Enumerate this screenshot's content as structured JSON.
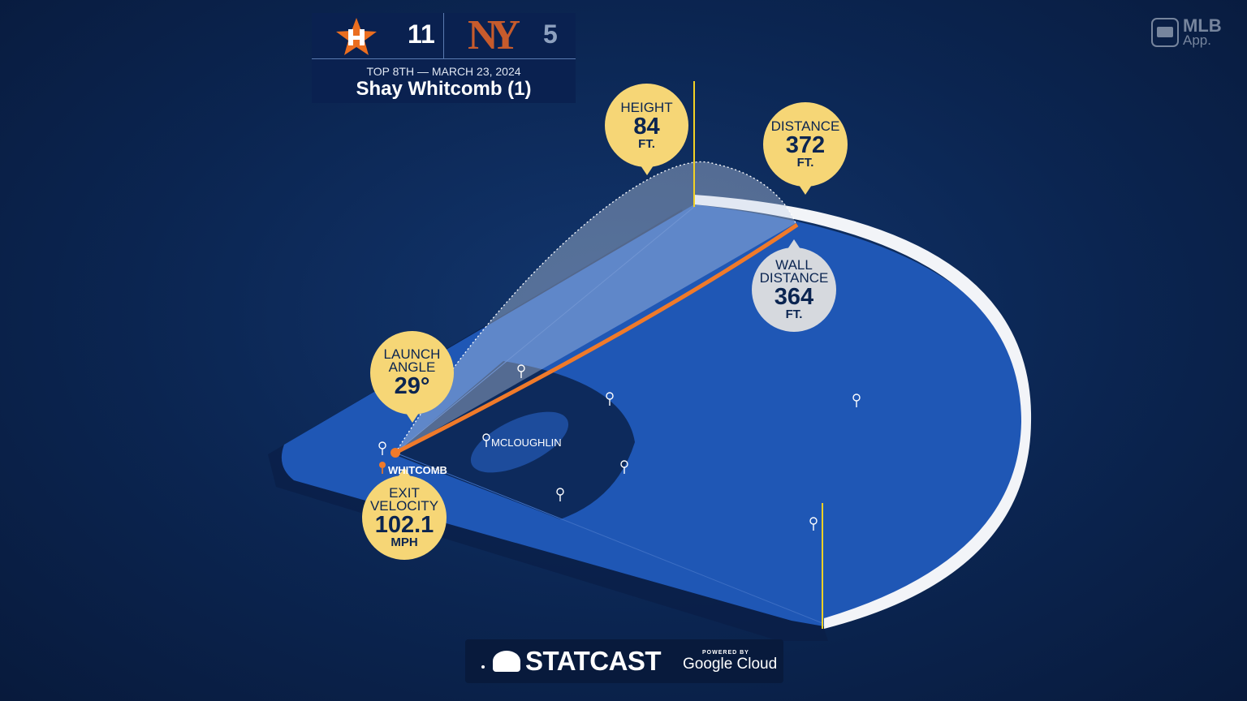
{
  "scoreboard": {
    "away_team": "Houston Astros",
    "away_score": "11",
    "home_team": "New York Mets",
    "home_logo_text": "NY",
    "home_score": "5",
    "inning_date": "TOP 8TH — MARCH 23, 2024",
    "batter": "Shay Whitcomb (1)"
  },
  "app_badge": {
    "line1": "MLB",
    "line2": "App."
  },
  "callouts": {
    "height": {
      "label": "HEIGHT",
      "value": "84",
      "unit": "FT."
    },
    "distance": {
      "label": "DISTANCE",
      "value": "372",
      "unit": "FT."
    },
    "wall_distance": {
      "label1": "WALL",
      "label2": "DISTANCE",
      "value": "364",
      "unit": "FT."
    },
    "launch_angle": {
      "label1": "LAUNCH",
      "label2": "ANGLE",
      "value": "29°"
    },
    "exit_velocity": {
      "label1": "EXIT",
      "label2": "VELOCITY",
      "value": "102.1",
      "unit": "MPH"
    }
  },
  "players": {
    "fielder": "MCLOUGHLIN",
    "batter": "WHITCOMB"
  },
  "footer": {
    "brand": "STATCAST",
    "powered_by": "POWERED BY",
    "partner": "Google Cloud"
  },
  "colors": {
    "field": "#1f57b5",
    "trajectory": "#f07a2a",
    "callout": "#f6d676",
    "wall_callout": "#d6d9de",
    "foul_pole": "#f2d024"
  }
}
